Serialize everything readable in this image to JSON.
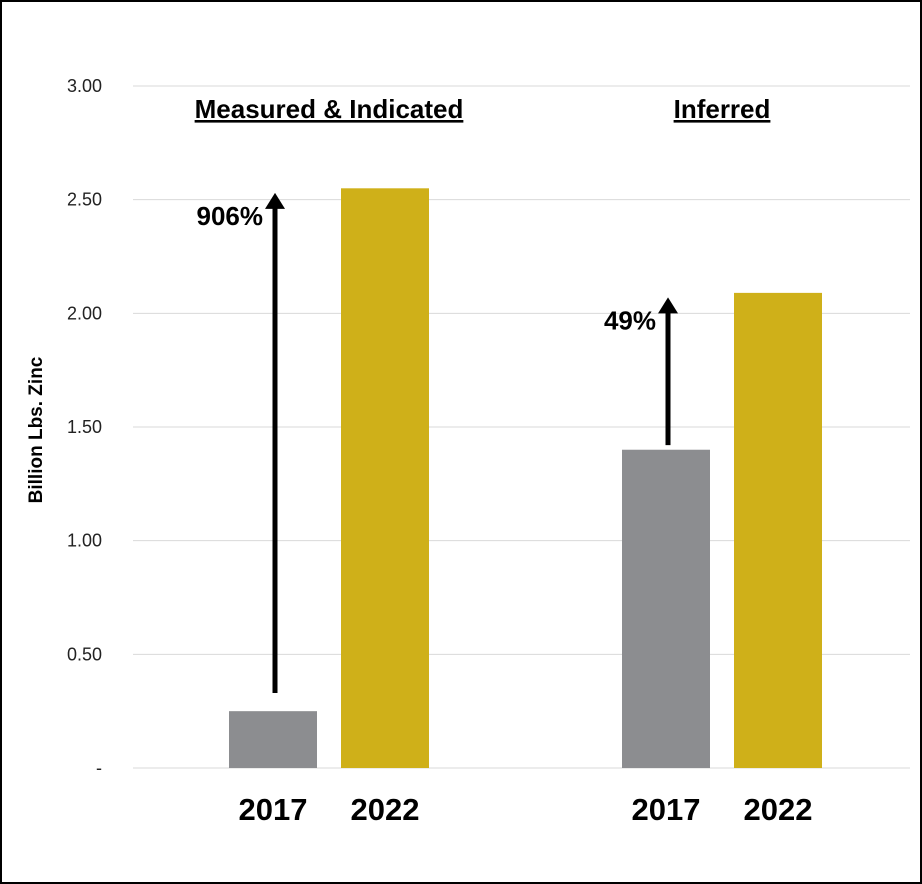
{
  "chart_data": {
    "type": "bar",
    "ylabel": "Billion Lbs. Zinc",
    "ylim": [
      0,
      3.0
    ],
    "yticks": [
      {
        "value": 0,
        "label": "-"
      },
      {
        "value": 0.5,
        "label": "0.50"
      },
      {
        "value": 1.0,
        "label": "1.00"
      },
      {
        "value": 1.5,
        "label": "1.50"
      },
      {
        "value": 2.0,
        "label": "2.00"
      },
      {
        "value": 2.5,
        "label": "2.50"
      },
      {
        "value": 3.0,
        "label": "3.00"
      }
    ],
    "grid": true,
    "groups": [
      {
        "title": "Measured & Indicated",
        "bars": [
          {
            "category": "2017",
            "value": 0.25,
            "color": "#8c8d90"
          },
          {
            "category": "2022",
            "value": 2.55,
            "color": "#cfb019"
          }
        ],
        "annotation": {
          "text": "906%",
          "from": 0.33,
          "to": 2.53
        }
      },
      {
        "title": "Inferred",
        "bars": [
          {
            "category": "2017",
            "value": 1.4,
            "color": "#8c8d90"
          },
          {
            "category": "2022",
            "value": 2.09,
            "color": "#cfb019"
          }
        ],
        "annotation": {
          "text": "49%",
          "from": 1.42,
          "to": 2.07
        }
      }
    ]
  }
}
